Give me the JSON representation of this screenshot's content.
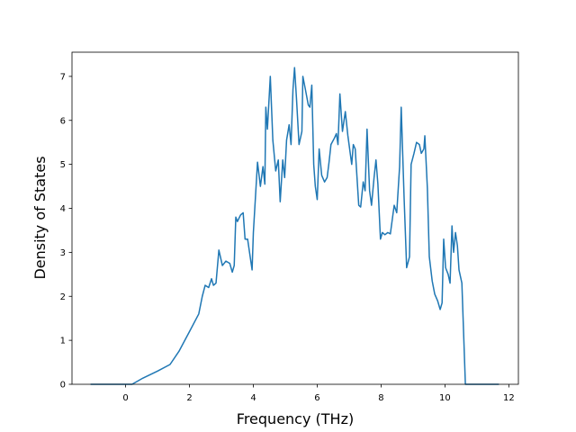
{
  "chart_data": {
    "type": "line",
    "xlabel": "Frequency (THz)",
    "ylabel": "Density of States",
    "color": "#1f77b4",
    "xlim": [
      -1.68,
      12.3
    ],
    "ylim": [
      0,
      7.55
    ],
    "xticks": [
      0,
      2,
      4,
      6,
      8,
      10,
      12
    ],
    "yticks": [
      0,
      1,
      2,
      3,
      4,
      5,
      6,
      7
    ],
    "x": [
      -1.1,
      0.2,
      0.54,
      1.0,
      1.39,
      1.67,
      2.0,
      2.29,
      2.4,
      2.49,
      2.6,
      2.69,
      2.75,
      2.83,
      2.92,
      3.03,
      3.14,
      3.26,
      3.34,
      3.4,
      3.45,
      3.5,
      3.6,
      3.68,
      3.74,
      3.82,
      3.96,
      4.0,
      4.13,
      4.22,
      4.3,
      4.36,
      4.39,
      4.44,
      4.53,
      4.61,
      4.7,
      4.78,
      4.84,
      4.92,
      4.98,
      5.04,
      5.12,
      5.18,
      5.24,
      5.29,
      5.35,
      5.43,
      5.52,
      5.55,
      5.63,
      5.72,
      5.77,
      5.83,
      5.89,
      5.94,
      6.0,
      6.06,
      6.14,
      6.23,
      6.31,
      6.37,
      6.43,
      6.54,
      6.6,
      6.65,
      6.71,
      6.79,
      6.88,
      6.96,
      7.08,
      7.13,
      7.19,
      7.3,
      7.36,
      7.44,
      7.5,
      7.56,
      7.64,
      7.7,
      7.78,
      7.84,
      7.9,
      7.98,
      8.04,
      8.12,
      8.21,
      8.29,
      8.41,
      8.49,
      8.58,
      8.63,
      8.72,
      8.8,
      8.89,
      8.94,
      9.03,
      9.11,
      9.2,
      9.26,
      9.34,
      9.37,
      9.45,
      9.51,
      9.6,
      9.68,
      9.77,
      9.85,
      9.91,
      9.96,
      10.02,
      10.1,
      10.16,
      10.22,
      10.27,
      10.33,
      10.39,
      10.44,
      10.53,
      10.64,
      11.69
    ],
    "values": [
      0,
      0,
      0.14,
      0.3,
      0.45,
      0.75,
      1.2,
      1.6,
      2.0,
      2.25,
      2.2,
      2.4,
      2.25,
      2.3,
      3.05,
      2.7,
      2.8,
      2.75,
      2.55,
      2.7,
      3.8,
      3.7,
      3.85,
      3.9,
      3.3,
      3.3,
      2.6,
      3.45,
      5.05,
      4.5,
      4.95,
      4.55,
      6.3,
      5.8,
      7.0,
      5.55,
      4.85,
      5.1,
      4.15,
      5.1,
      4.7,
      5.55,
      5.9,
      5.45,
      6.7,
      7.2,
      6.5,
      5.45,
      5.75,
      7.0,
      6.7,
      6.35,
      6.3,
      6.8,
      5.0,
      4.5,
      4.2,
      5.35,
      4.75,
      4.6,
      4.7,
      5.05,
      5.45,
      5.6,
      5.7,
      5.45,
      6.6,
      5.75,
      6.2,
      5.65,
      5.0,
      5.45,
      5.35,
      4.07,
      4.03,
      4.6,
      4.4,
      5.8,
      4.4,
      4.07,
      4.7,
      5.1,
      4.55,
      3.3,
      3.45,
      3.4,
      3.45,
      3.42,
      4.07,
      3.9,
      4.95,
      6.3,
      4.25,
      2.65,
      2.9,
      5.0,
      5.25,
      5.5,
      5.45,
      5.25,
      5.35,
      5.65,
      4.45,
      2.9,
      2.35,
      2.05,
      1.9,
      1.7,
      1.85,
      3.3,
      2.65,
      2.5,
      2.3,
      3.6,
      3.0,
      3.45,
      3.15,
      2.6,
      2.3,
      0,
      0
    ]
  }
}
